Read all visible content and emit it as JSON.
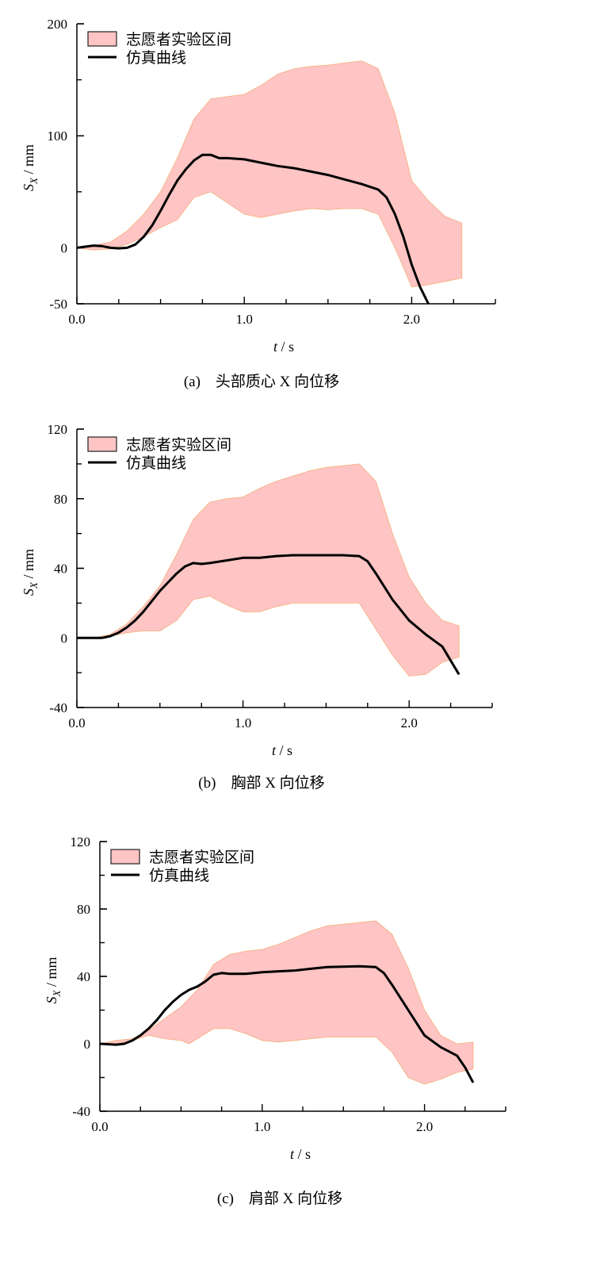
{
  "colors": {
    "band_fill": "#ffc4c4",
    "band_edge": "#f2b07a",
    "line": "#000000",
    "axis": "#000000"
  },
  "chart_data": [
    {
      "type": "area",
      "caption": "(a)　头部质心 X 向位移",
      "xlabel_italic": "t",
      "xlabel_unit": " / s",
      "ylabel_main": "S",
      "ylabel_sub": "X",
      "ylabel_unit": " / mm",
      "xlim": [
        0,
        2.5
      ],
      "ylim": [
        -50,
        200
      ],
      "xticks": [
        0.0,
        1.0,
        2.0
      ],
      "xtick_labels": [
        "0.0",
        "1.0",
        "2.0"
      ],
      "yticks": [
        -50,
        0,
        100,
        200
      ],
      "ytick_labels": [
        "-50",
        "0",
        "100",
        "200"
      ],
      "legend": {
        "band": "志愿者实验区间",
        "line": "仿真曲线",
        "position": "top-left"
      },
      "series": [
        {
          "name": "志愿者实验区间",
          "kind": "band",
          "upper": [
            [
              0.0,
              0
            ],
            [
              0.1,
              2
            ],
            [
              0.2,
              5
            ],
            [
              0.3,
              15
            ],
            [
              0.4,
              30
            ],
            [
              0.5,
              50
            ],
            [
              0.6,
              80
            ],
            [
              0.7,
              115
            ],
            [
              0.8,
              133
            ],
            [
              0.9,
              135
            ],
            [
              1.0,
              137
            ],
            [
              1.1,
              145
            ],
            [
              1.2,
              155
            ],
            [
              1.3,
              160
            ],
            [
              1.4,
              162
            ],
            [
              1.5,
              163
            ],
            [
              1.6,
              165
            ],
            [
              1.7,
              167
            ],
            [
              1.8,
              160
            ],
            [
              1.9,
              120
            ],
            [
              2.0,
              60
            ],
            [
              2.1,
              42
            ],
            [
              2.2,
              28
            ],
            [
              2.3,
              22
            ]
          ],
          "lower": [
            [
              0.0,
              0
            ],
            [
              0.1,
              -2
            ],
            [
              0.2,
              -1
            ],
            [
              0.3,
              3
            ],
            [
              0.4,
              10
            ],
            [
              0.5,
              18
            ],
            [
              0.6,
              25
            ],
            [
              0.7,
              45
            ],
            [
              0.8,
              50
            ],
            [
              0.9,
              40
            ],
            [
              1.0,
              30
            ],
            [
              1.1,
              27
            ],
            [
              1.2,
              30
            ],
            [
              1.3,
              33
            ],
            [
              1.4,
              35
            ],
            [
              1.5,
              34
            ],
            [
              1.6,
              35
            ],
            [
              1.7,
              35
            ],
            [
              1.8,
              30
            ],
            [
              1.9,
              0
            ],
            [
              2.0,
              -35
            ],
            [
              2.1,
              -33
            ],
            [
              2.2,
              -30
            ],
            [
              2.3,
              -27
            ]
          ]
        },
        {
          "name": "仿真曲线",
          "kind": "line",
          "points": [
            [
              0.0,
              0
            ],
            [
              0.05,
              1
            ],
            [
              0.1,
              2
            ],
            [
              0.15,
              1.5
            ],
            [
              0.2,
              0
            ],
            [
              0.25,
              -0.5
            ],
            [
              0.3,
              0
            ],
            [
              0.35,
              3
            ],
            [
              0.4,
              10
            ],
            [
              0.45,
              20
            ],
            [
              0.5,
              33
            ],
            [
              0.55,
              47
            ],
            [
              0.6,
              60
            ],
            [
              0.65,
              70
            ],
            [
              0.7,
              78
            ],
            [
              0.75,
              83
            ],
            [
              0.8,
              83
            ],
            [
              0.85,
              80
            ],
            [
              0.9,
              80
            ],
            [
              1.0,
              79
            ],
            [
              1.1,
              76
            ],
            [
              1.2,
              73
            ],
            [
              1.3,
              71
            ],
            [
              1.4,
              68
            ],
            [
              1.5,
              65
            ],
            [
              1.6,
              61
            ],
            [
              1.7,
              57
            ],
            [
              1.8,
              52
            ],
            [
              1.85,
              45
            ],
            [
              1.9,
              30
            ],
            [
              1.95,
              10
            ],
            [
              2.0,
              -15
            ],
            [
              2.05,
              -35
            ],
            [
              2.1,
              -50
            ]
          ]
        }
      ]
    },
    {
      "type": "area",
      "caption": "(b)　胸部 X 向位移",
      "xlabel_italic": "t",
      "xlabel_unit": " / s",
      "ylabel_main": "S",
      "ylabel_sub": "X",
      "ylabel_unit": " / mm",
      "xlim": [
        0,
        2.5
      ],
      "ylim": [
        -40,
        120
      ],
      "xticks": [
        0.0,
        1.0,
        2.0
      ],
      "xtick_labels": [
        "0.0",
        "1.0",
        "2.0"
      ],
      "yticks": [
        -40,
        0,
        40,
        80,
        120
      ],
      "ytick_labels": [
        "-40",
        "0",
        "40",
        "80",
        "120"
      ],
      "legend": {
        "band": "志愿者实验区间",
        "line": "仿真曲线",
        "position": "top-left"
      },
      "series": [
        {
          "name": "志愿者实验区间",
          "kind": "band",
          "upper": [
            [
              0.0,
              0
            ],
            [
              0.1,
              0
            ],
            [
              0.2,
              2
            ],
            [
              0.3,
              8
            ],
            [
              0.4,
              18
            ],
            [
              0.5,
              30
            ],
            [
              0.6,
              48
            ],
            [
              0.7,
              68
            ],
            [
              0.8,
              78
            ],
            [
              0.9,
              80
            ],
            [
              1.0,
              81
            ],
            [
              1.1,
              86
            ],
            [
              1.2,
              90
            ],
            [
              1.3,
              93
            ],
            [
              1.4,
              96
            ],
            [
              1.5,
              98
            ],
            [
              1.6,
              99
            ],
            [
              1.7,
              100
            ],
            [
              1.8,
              90
            ],
            [
              1.9,
              60
            ],
            [
              2.0,
              35
            ],
            [
              2.1,
              20
            ],
            [
              2.2,
              10
            ],
            [
              2.3,
              7
            ]
          ],
          "lower": [
            [
              0.0,
              0
            ],
            [
              0.1,
              0
            ],
            [
              0.2,
              1
            ],
            [
              0.3,
              3
            ],
            [
              0.4,
              4
            ],
            [
              0.5,
              4
            ],
            [
              0.6,
              10
            ],
            [
              0.7,
              22
            ],
            [
              0.8,
              24
            ],
            [
              0.9,
              19
            ],
            [
              1.0,
              15
            ],
            [
              1.1,
              15
            ],
            [
              1.2,
              18
            ],
            [
              1.3,
              20
            ],
            [
              1.4,
              20
            ],
            [
              1.5,
              20
            ],
            [
              1.6,
              20
            ],
            [
              1.7,
              20
            ],
            [
              1.8,
              5
            ],
            [
              1.9,
              -10
            ],
            [
              2.0,
              -22
            ],
            [
              2.1,
              -21
            ],
            [
              2.2,
              -14
            ],
            [
              2.3,
              -11
            ]
          ]
        },
        {
          "name": "仿真曲线",
          "kind": "line",
          "points": [
            [
              0.0,
              0
            ],
            [
              0.1,
              0
            ],
            [
              0.15,
              0
            ],
            [
              0.2,
              1
            ],
            [
              0.25,
              3
            ],
            [
              0.3,
              6
            ],
            [
              0.35,
              10
            ],
            [
              0.4,
              15
            ],
            [
              0.45,
              21
            ],
            [
              0.5,
              27
            ],
            [
              0.55,
              32
            ],
            [
              0.6,
              37
            ],
            [
              0.65,
              41
            ],
            [
              0.7,
              43
            ],
            [
              0.75,
              42.5
            ],
            [
              0.8,
              43
            ],
            [
              0.9,
              44.5
            ],
            [
              1.0,
              46
            ],
            [
              1.1,
              46
            ],
            [
              1.2,
              47
            ],
            [
              1.3,
              47.5
            ],
            [
              1.4,
              47.5
            ],
            [
              1.5,
              47.5
            ],
            [
              1.6,
              47.5
            ],
            [
              1.7,
              47
            ],
            [
              1.75,
              44
            ],
            [
              1.8,
              37
            ],
            [
              1.9,
              22
            ],
            [
              2.0,
              10
            ],
            [
              2.1,
              2
            ],
            [
              2.2,
              -5
            ],
            [
              2.25,
              -13
            ],
            [
              2.3,
              -21
            ]
          ]
        }
      ]
    },
    {
      "type": "area",
      "caption": "(c)　肩部 X 向位移",
      "xlabel_italic": "t",
      "xlabel_unit": " / s",
      "ylabel_main": "S",
      "ylabel_sub": "X",
      "ylabel_unit": " / mm",
      "xlim": [
        0,
        2.5
      ],
      "ylim": [
        -40,
        120
      ],
      "xticks": [
        0.0,
        1.0,
        2.0
      ],
      "xtick_labels": [
        "0.0",
        "1.0",
        "2.0"
      ],
      "yticks": [
        -40,
        0,
        40,
        80,
        120
      ],
      "ytick_labels": [
        "-40",
        "0",
        "40",
        "80",
        "120"
      ],
      "legend": {
        "band": "志愿者实验区间",
        "line": "仿真曲线",
        "position": "top-left"
      },
      "series": [
        {
          "name": "志愿者实验区间",
          "kind": "band",
          "upper": [
            [
              0.0,
              0
            ],
            [
              0.1,
              2
            ],
            [
              0.2,
              3
            ],
            [
              0.3,
              8
            ],
            [
              0.4,
              15
            ],
            [
              0.5,
              22
            ],
            [
              0.6,
              32
            ],
            [
              0.7,
              47
            ],
            [
              0.8,
              53
            ],
            [
              0.9,
              55
            ],
            [
              1.0,
              56
            ],
            [
              1.1,
              59
            ],
            [
              1.2,
              63
            ],
            [
              1.3,
              67
            ],
            [
              1.4,
              70
            ],
            [
              1.5,
              71
            ],
            [
              1.6,
              72
            ],
            [
              1.7,
              73
            ],
            [
              1.8,
              65
            ],
            [
              1.9,
              45
            ],
            [
              2.0,
              20
            ],
            [
              2.1,
              5
            ],
            [
              2.2,
              0
            ],
            [
              2.3,
              1
            ]
          ],
          "lower": [
            [
              0.0,
              0
            ],
            [
              0.1,
              0
            ],
            [
              0.2,
              2
            ],
            [
              0.3,
              5
            ],
            [
              0.4,
              3
            ],
            [
              0.5,
              2
            ],
            [
              0.55,
              0
            ],
            [
              0.6,
              3
            ],
            [
              0.7,
              9
            ],
            [
              0.8,
              9
            ],
            [
              0.9,
              6
            ],
            [
              1.0,
              2
            ],
            [
              1.1,
              1
            ],
            [
              1.2,
              2
            ],
            [
              1.3,
              3
            ],
            [
              1.4,
              4
            ],
            [
              1.5,
              4
            ],
            [
              1.6,
              4
            ],
            [
              1.7,
              4
            ],
            [
              1.8,
              -5
            ],
            [
              1.9,
              -20
            ],
            [
              2.0,
              -24
            ],
            [
              2.1,
              -21
            ],
            [
              2.2,
              -17
            ],
            [
              2.3,
              -15
            ]
          ]
        },
        {
          "name": "仿真曲线",
          "kind": "line",
          "points": [
            [
              0.0,
              0
            ],
            [
              0.1,
              -0.5
            ],
            [
              0.15,
              0
            ],
            [
              0.2,
              2
            ],
            [
              0.25,
              5
            ],
            [
              0.3,
              9
            ],
            [
              0.35,
              14
            ],
            [
              0.4,
              20
            ],
            [
              0.45,
              25
            ],
            [
              0.5,
              29
            ],
            [
              0.55,
              32
            ],
            [
              0.6,
              34
            ],
            [
              0.65,
              37
            ],
            [
              0.7,
              41
            ],
            [
              0.75,
              42
            ],
            [
              0.8,
              41.5
            ],
            [
              0.9,
              41.5
            ],
            [
              1.0,
              42.5
            ],
            [
              1.1,
              43
            ],
            [
              1.2,
              43.5
            ],
            [
              1.3,
              44.5
            ],
            [
              1.4,
              45.5
            ],
            [
              1.5,
              45.8
            ],
            [
              1.6,
              46
            ],
            [
              1.7,
              45.5
            ],
            [
              1.75,
              42
            ],
            [
              1.8,
              35
            ],
            [
              1.9,
              20
            ],
            [
              2.0,
              5
            ],
            [
              2.1,
              -2
            ],
            [
              2.2,
              -7
            ],
            [
              2.25,
              -14
            ],
            [
              2.3,
              -23
            ]
          ]
        }
      ]
    }
  ]
}
